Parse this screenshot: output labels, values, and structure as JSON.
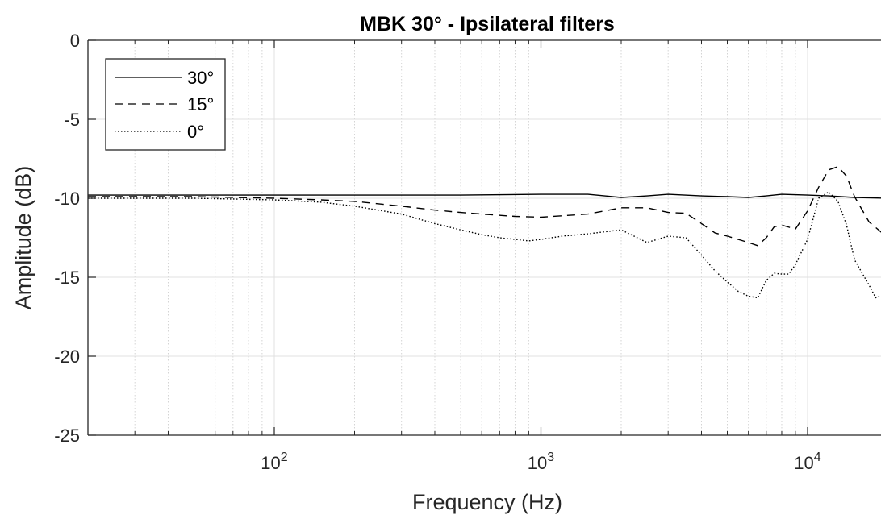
{
  "chart_data": {
    "type": "line",
    "title": "MBK 30° - Ipsilateral filters",
    "xlabel": "Frequency (Hz)",
    "ylabel": "Amplitude (dB)",
    "x_scale": "log",
    "xlim": [
      20,
      20000
    ],
    "ylim": [
      -25,
      0
    ],
    "x_ticks": [
      100,
      1000,
      10000
    ],
    "x_tick_labels": [
      {
        "base": "10",
        "exp": "2"
      },
      {
        "base": "10",
        "exp": "3"
      },
      {
        "base": "10",
        "exp": "4"
      }
    ],
    "y_ticks": [
      0,
      -5,
      -10,
      -15,
      -20,
      -25
    ],
    "y_tick_labels": [
      "0",
      "-5",
      "-10",
      "-15",
      "-20",
      "-25"
    ],
    "grid": true,
    "legend_position": "top-left",
    "series": [
      {
        "name": "30°",
        "style": "solid",
        "x": [
          20,
          50,
          100,
          200,
          500,
          1000,
          1500,
          2000,
          2500,
          3000,
          4000,
          5000,
          6000,
          7000,
          8000,
          10000,
          12000,
          15000,
          20000
        ],
        "y": [
          -9.8,
          -9.8,
          -9.8,
          -9.8,
          -9.8,
          -9.75,
          -9.75,
          -9.95,
          -9.85,
          -9.75,
          -9.85,
          -9.9,
          -9.95,
          -9.85,
          -9.75,
          -9.8,
          -9.85,
          -9.95,
          -10.0
        ]
      },
      {
        "name": "15°",
        "style": "dashed",
        "x": [
          20,
          50,
          100,
          150,
          200,
          300,
          400,
          500,
          600,
          800,
          1000,
          1500,
          2000,
          2500,
          3000,
          3500,
          4000,
          4500,
          5000,
          6000,
          6500,
          7000,
          7500,
          8000,
          9000,
          10000,
          11000,
          12000,
          13000,
          14000,
          15000,
          17000,
          20000
        ],
        "y": [
          -9.9,
          -9.9,
          -10.0,
          -10.1,
          -10.2,
          -10.5,
          -10.75,
          -10.9,
          -11.0,
          -11.15,
          -11.2,
          -11.0,
          -10.6,
          -10.6,
          -10.9,
          -10.95,
          -11.6,
          -12.2,
          -12.4,
          -12.8,
          -13.0,
          -12.5,
          -11.8,
          -11.7,
          -11.95,
          -10.8,
          -9.3,
          -8.2,
          -8.0,
          -8.6,
          -9.9,
          -11.5,
          -12.5
        ]
      },
      {
        "name": "0°",
        "style": "dotted",
        "x": [
          20,
          50,
          100,
          150,
          200,
          300,
          400,
          500,
          600,
          700,
          800,
          900,
          1000,
          1200,
          1500,
          2000,
          2500,
          3000,
          3500,
          4000,
          4500,
          5000,
          5500,
          6000,
          6500,
          7000,
          7500,
          8000,
          8500,
          9000,
          10000,
          11000,
          12000,
          13000,
          14000,
          15000,
          17000,
          18000,
          20000
        ],
        "y": [
          -10.0,
          -10.0,
          -10.1,
          -10.25,
          -10.5,
          -11.0,
          -11.6,
          -12.0,
          -12.3,
          -12.5,
          -12.6,
          -12.7,
          -12.6,
          -12.4,
          -12.25,
          -12.0,
          -12.8,
          -12.4,
          -12.5,
          -13.6,
          -14.6,
          -15.3,
          -15.9,
          -16.2,
          -16.3,
          -15.2,
          -14.75,
          -14.8,
          -14.8,
          -14.2,
          -12.6,
          -10.0,
          -9.6,
          -10.2,
          -11.7,
          -13.9,
          -15.5,
          -16.3,
          -16.0
        ]
      }
    ]
  }
}
